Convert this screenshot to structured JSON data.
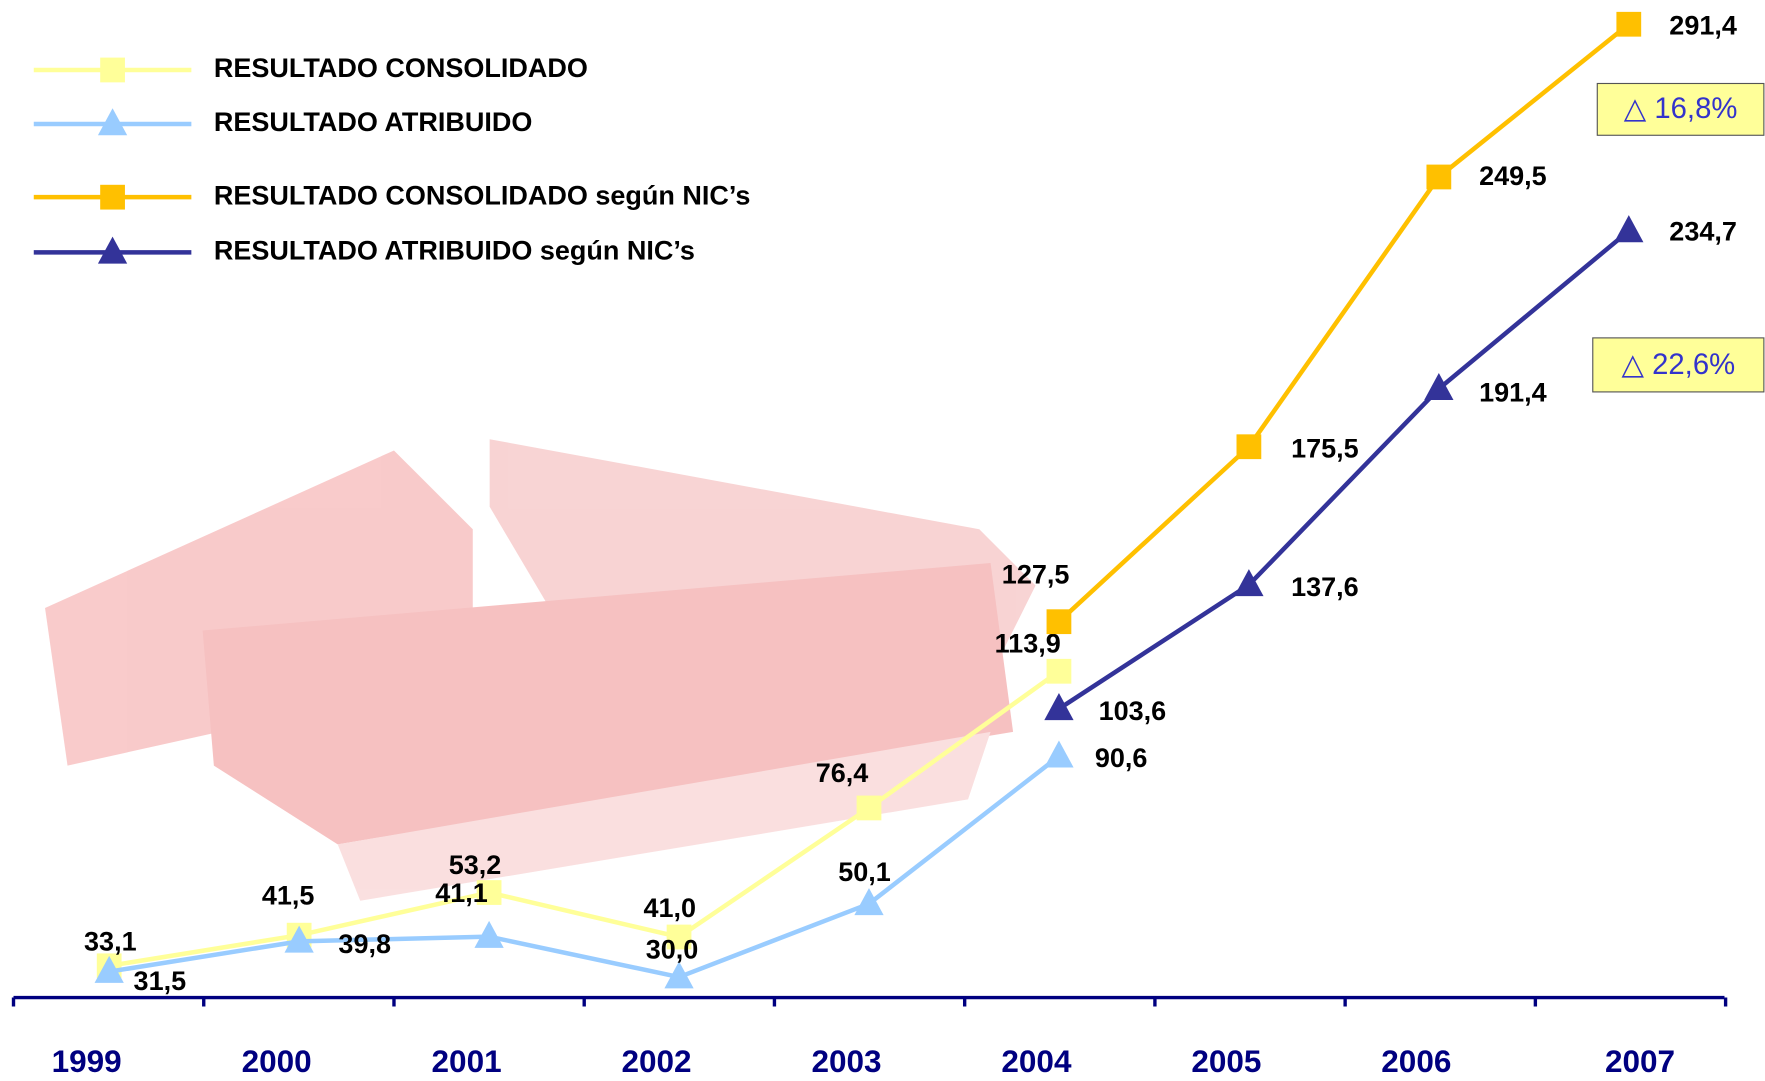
{
  "chart_data": {
    "type": "line",
    "categories": [
      "1999",
      "2000",
      "2001",
      "2002",
      "2003",
      "2004",
      "2005",
      "2006",
      "2007"
    ],
    "series": [
      {
        "name": "RESULTADO CONSOLIDADO",
        "color": "#FFFF99",
        "marker": "square",
        "values": [
          33.1,
          41.5,
          53.2,
          41.0,
          76.4,
          113.9,
          null,
          null,
          null
        ],
        "value_labels": [
          "33,1",
          "41,5",
          "53,2",
          "41,0",
          "76,4",
          "113,9",
          null,
          null,
          null
        ]
      },
      {
        "name": "RESULTADO ATRIBUIDO",
        "color": "#99CCFF",
        "marker": "triangle",
        "values": [
          31.5,
          39.8,
          41.1,
          30.0,
          50.1,
          90.6,
          null,
          null,
          null
        ],
        "value_labels": [
          "31,5",
          "39,8",
          "41,1",
          "30,0",
          "50,1",
          "90,6",
          null,
          null,
          null
        ]
      },
      {
        "name": "RESULTADO CONSOLIDADO según NIC’s",
        "color": "#FFC000",
        "marker": "square",
        "values": [
          null,
          null,
          null,
          null,
          null,
          127.5,
          175.5,
          249.5,
          291.4
        ],
        "value_labels": [
          null,
          null,
          null,
          null,
          null,
          "127,5",
          "175,5",
          "249,5",
          "291,4"
        ]
      },
      {
        "name": "RESULTADO ATRIBUIDO según NIC’s",
        "color": "#333399",
        "marker": "triangle",
        "values": [
          null,
          null,
          null,
          null,
          null,
          103.6,
          137.6,
          191.4,
          234.7
        ],
        "value_labels": [
          null,
          null,
          null,
          null,
          null,
          "103,6",
          "137,6",
          "191,4",
          "234,7"
        ]
      }
    ],
    "annotations": [
      "△ 16,8%",
      "△ 22,6%"
    ],
    "ylim": [
      24.4,
      298
    ]
  }
}
